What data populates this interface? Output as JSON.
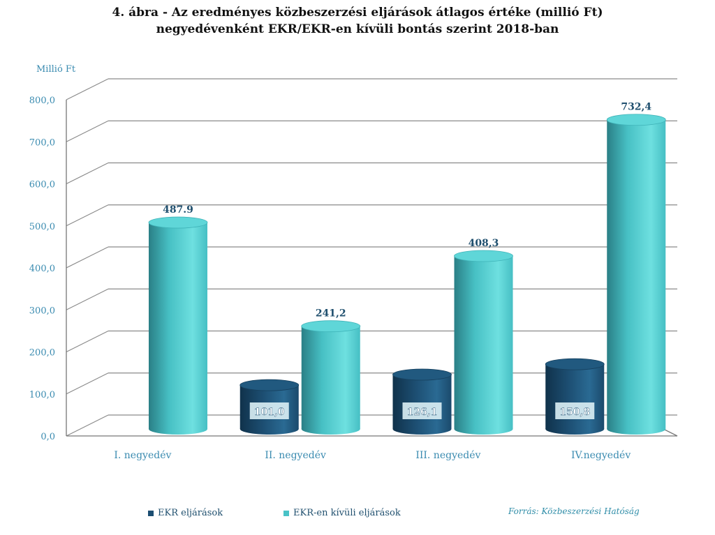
{
  "title_line1": "4. ábra - Az eredményes közbeszerzési eljárások átlagos értéke (millió Ft)",
  "title_line2": "negyedévenként EKR/EKR-en kívüli bontás szerint 2018-ban",
  "unit_label": "Millió Ft",
  "source": "Forrás: Közbeszerzési Hatóság",
  "chart_data": {
    "type": "bar",
    "categories": [
      "I. negyedév",
      "II. negyedév",
      "III. negyedév",
      "IV.negyedév"
    ],
    "series": [
      {
        "name": "EKR eljárások",
        "color": "#1c4e72",
        "values": [
          null,
          101.0,
          126.1,
          150.8
        ],
        "labels": [
          "",
          "101,0",
          "126,1",
          "150,8"
        ]
      },
      {
        "name": "EKR-en kívüli eljárások",
        "color": "#49c3c7",
        "values": [
          487.9,
          241.2,
          408.3,
          732.4
        ],
        "labels": [
          "487.9",
          "241,2",
          "408,3",
          "732,4"
        ]
      }
    ],
    "ylim": [
      0,
      800
    ],
    "yticks": [
      "0,0",
      "100,0",
      "200,0",
      "300,0",
      "400,0",
      "500,0",
      "600,0",
      "700,0",
      "800,0"
    ],
    "ylabel": "Millió Ft",
    "grid": true,
    "legend_position": "bottom-left"
  }
}
